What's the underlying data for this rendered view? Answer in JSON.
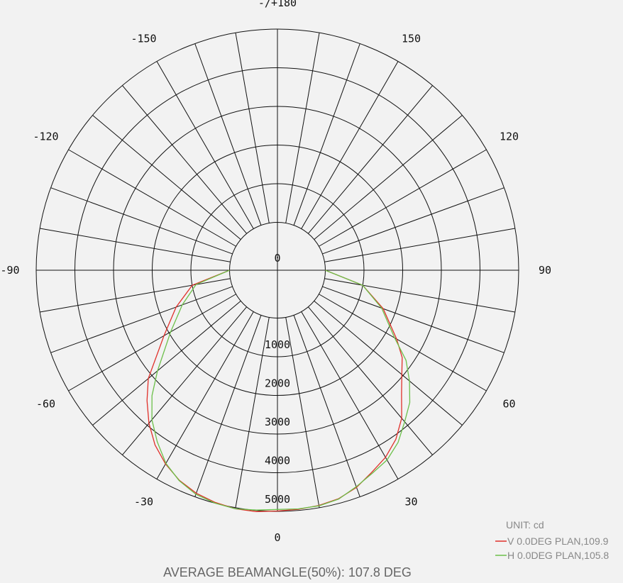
{
  "chart_data": {
    "type": "polar-line",
    "title": "",
    "unit_label": "UNIT: cd",
    "footer": "AVERAGE BEAMANGLE(50%): 107.8 DEG",
    "radial_max": 5000,
    "ring_values": [
      1000,
      2000,
      3000,
      4000,
      5000
    ],
    "ring_labels": [
      "0",
      "1000",
      "2000",
      "3000",
      "4000",
      "5000"
    ],
    "angle_labels": [
      {
        "angle": 180,
        "text": "-/+180"
      },
      {
        "angle": 150,
        "text": "150"
      },
      {
        "angle": 120,
        "text": "120"
      },
      {
        "angle": 90,
        "text": "90"
      },
      {
        "angle": 60,
        "text": "60"
      },
      {
        "angle": 30,
        "text": "30"
      },
      {
        "angle": 0,
        "text": "0"
      },
      {
        "angle": -30,
        "text": "-30"
      },
      {
        "angle": -60,
        "text": "-60"
      },
      {
        "angle": -90,
        "text": "-90"
      },
      {
        "angle": -120,
        "text": "-120"
      },
      {
        "angle": -150,
        "text": "-150"
      }
    ],
    "spoke_step_deg": 10,
    "series": [
      {
        "name": "V 0.0DEG PLAN,109.9",
        "color": "#e0302a",
        "angles": [
          -90,
          -80,
          -70,
          -60,
          -50,
          -45,
          -40,
          -35,
          -30,
          -25,
          -20,
          -15,
          -10,
          -5,
          0,
          5,
          10,
          15,
          20,
          25,
          30,
          35,
          40,
          45,
          50,
          55,
          60,
          70,
          80,
          90
        ],
        "values": [
          0,
          1000,
          1550,
          2150,
          3120,
          3530,
          3930,
          4280,
          4550,
          4760,
          4900,
          4980,
          5030,
          5030,
          4990,
          4970,
          4940,
          4880,
          4740,
          4530,
          4350,
          4100,
          3760,
          3300,
          2960,
          2700,
          2320,
          1670,
          1000,
          0
        ]
      },
      {
        "name": "H 0.0DEG PLAN,105.8",
        "color": "#6cc04a",
        "angles": [
          -90,
          -80,
          -70,
          -60,
          -50,
          -45,
          -40,
          -35,
          -30,
          -25,
          -20,
          -15,
          -10,
          -5,
          0,
          5,
          10,
          15,
          20,
          25,
          30,
          35,
          40,
          45,
          50,
          55,
          60,
          70,
          80,
          90
        ],
        "values": [
          0,
          900,
          1380,
          1950,
          2810,
          3350,
          3810,
          4180,
          4530,
          4770,
          4930,
          5000,
          5030,
          4990,
          4950,
          4960,
          4950,
          4890,
          4720,
          4560,
          4430,
          4200,
          3880,
          3600,
          3220,
          2820,
          2260,
          1630,
          1000,
          0
        ]
      }
    ]
  }
}
